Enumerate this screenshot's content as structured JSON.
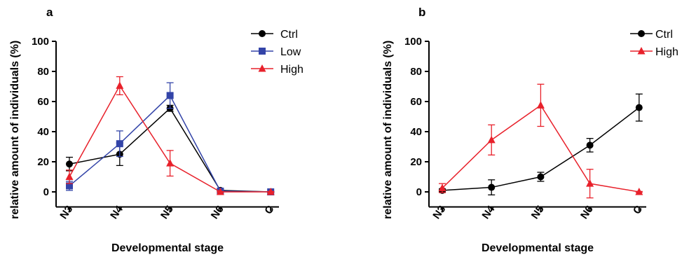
{
  "chart_data": [
    {
      "panel": "a",
      "type": "line",
      "xlabel": "Developmental stage",
      "ylabel": "relative amount of individuals (%)",
      "categories": [
        "N3",
        "N4",
        "N5",
        "N6",
        "C"
      ],
      "yticks": [
        "0",
        "20",
        "40",
        "60",
        "80",
        "100"
      ],
      "ylim": [
        -10,
        100
      ],
      "grid": false,
      "legend_position": "top-right",
      "series": [
        {
          "name": "Ctrl",
          "color": "#000000",
          "marker": "circle",
          "values": [
            18.5,
            25,
            55.5,
            1,
            0
          ],
          "errors": [
            4.5,
            7.5,
            2,
            0.5,
            0.3
          ]
        },
        {
          "name": "Low",
          "color": "#3344a8",
          "marker": "square",
          "values": [
            4,
            32,
            64,
            0.5,
            0
          ],
          "errors": [
            3,
            8.5,
            8.5,
            0.5,
            0.3
          ]
        },
        {
          "name": "High",
          "color": "#e8212b",
          "marker": "triangle",
          "values": [
            10,
            70.5,
            19,
            0,
            0
          ],
          "errors": [
            4.5,
            6,
            8.5,
            0.3,
            0.3
          ]
        }
      ]
    },
    {
      "panel": "b",
      "type": "line",
      "xlabel": "Developmental stage",
      "ylabel": "relative amount of individuals (%)",
      "categories": [
        "N3",
        "N4",
        "N5",
        "N6",
        "C"
      ],
      "yticks": [
        "0",
        "20",
        "40",
        "60",
        "80",
        "100"
      ],
      "ylim": [
        -10,
        100
      ],
      "grid": false,
      "legend_position": "top-right",
      "series": [
        {
          "name": "Ctrl",
          "color": "#000000",
          "marker": "circle",
          "values": [
            1,
            3,
            10,
            31,
            56
          ],
          "errors": [
            1,
            5,
            3,
            4.5,
            9
          ]
        },
        {
          "name": "High",
          "color": "#e8212b",
          "marker": "triangle",
          "values": [
            2.5,
            34.5,
            57.5,
            5.5,
            0
          ],
          "errors": [
            3,
            10,
            14,
            9.5,
            0.3
          ]
        }
      ]
    }
  ]
}
